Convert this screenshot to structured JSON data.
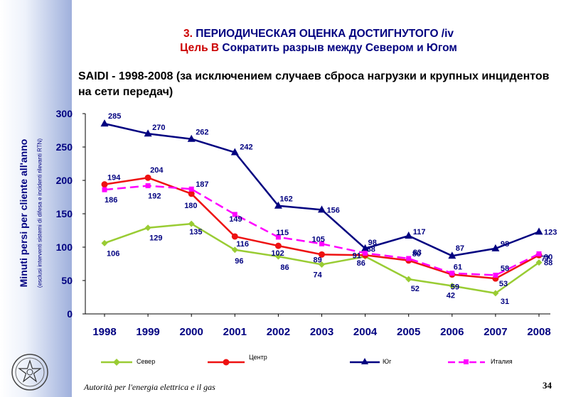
{
  "slide": {
    "heading_number": "3.",
    "heading_text": " ПЕРИОДИЧЕСКАЯ ОЦЕНКА ДОСТИГНУТОГО /iv",
    "goal_prefix": "Цель B",
    "goal_text": " Сократить разрыв между Севером и Югом",
    "subtitle": "SAIDI - 1998-2008 (за исключением случаев сброса нагрузки и крупных инцидентов на сети передач)",
    "footer": "Autorità per l'energia elettrica e il gas",
    "page_number": "34"
  },
  "chart_data": {
    "type": "line",
    "title": "SAIDI - 1998-2008 (за исключением случаев сброса нагрузки и крупных инцидентов на сети передач)",
    "ylabel": "Minuti persi per cliente all'anno",
    "ylabel_note": "(esclusi interventi sistemi di difesa e incidenti rilevanti RTN)",
    "xlabel": "",
    "categories": [
      "1998",
      "1999",
      "2000",
      "2001",
      "2002",
      "2003",
      "2004",
      "2005",
      "2006",
      "2007",
      "2008"
    ],
    "ylim": [
      0,
      300
    ],
    "yticks": [
      0,
      50,
      100,
      150,
      200,
      250,
      300
    ],
    "grid": false,
    "legend_position": "bottom",
    "series": [
      {
        "name": "Север",
        "color": "#99cc33",
        "marker": "diamond",
        "dash": "solid",
        "values": [
          106,
          129,
          135,
          96,
          86,
          74,
          86,
          52,
          42,
          31,
          77
        ]
      },
      {
        "name": "Центр",
        "color": "#ee1111",
        "marker": "circle",
        "dash": "solid",
        "values": [
          194,
          204,
          180,
          116,
          102,
          89,
          88,
          80,
          59,
          53,
          88
        ]
      },
      {
        "name": "Юг",
        "color": "#000080",
        "marker": "triangle",
        "dash": "solid",
        "values": [
          285,
          270,
          262,
          242,
          162,
          156,
          98,
          117,
          87,
          98,
          123
        ]
      },
      {
        "name": "Италия",
        "color": "#ff00ff",
        "marker": "square",
        "dash": "dashed",
        "values": [
          186,
          192,
          187,
          149,
          115,
          105,
          91,
          83,
          61,
          58,
          90
        ]
      }
    ]
  },
  "legend": {
    "north": "Север",
    "center": "Центр",
    "south": "Юг",
    "italy": "Италия"
  }
}
